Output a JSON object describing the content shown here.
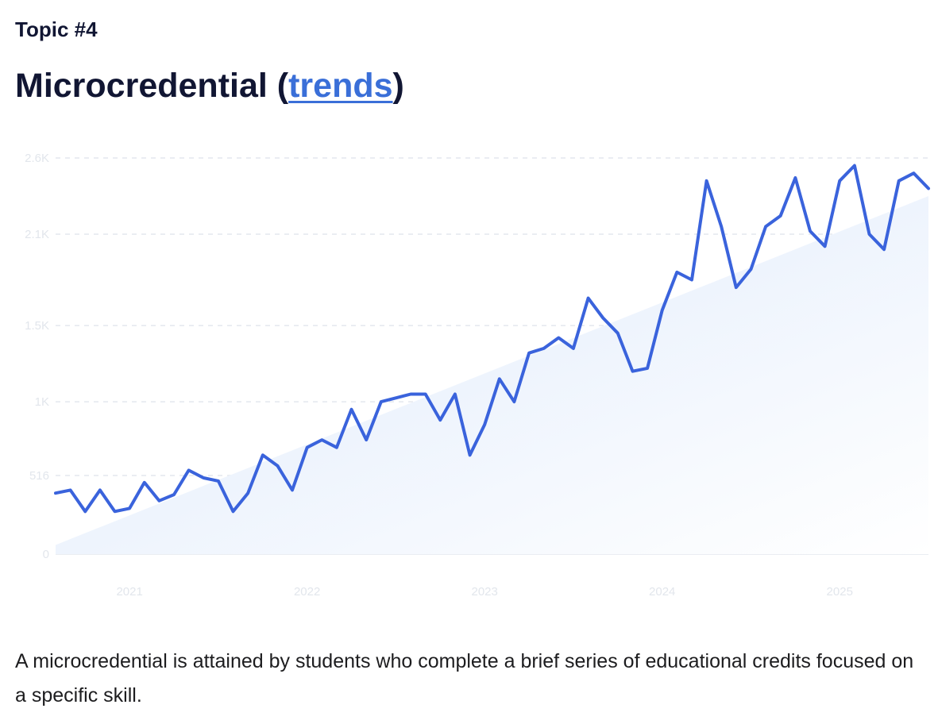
{
  "header": {
    "topic_label": "Topic #4",
    "title_main": "Microcredential",
    "title_paren_open": " (",
    "title_link": "trends",
    "title_paren_close": ")"
  },
  "description": "A microcredential is attained by students who complete a brief series of educational credits focused on a specific skill.",
  "colors": {
    "line": "#3a63dc",
    "trend_fill": "#e6f0fd",
    "grid": "#e4e7ee",
    "tick_text": "#e2e6ec",
    "title": "#111633",
    "link": "#3a6fd8"
  },
  "chart_data": {
    "type": "line",
    "y_ticks": [
      {
        "value": 0,
        "label": "0"
      },
      {
        "value": 516,
        "label": "516"
      },
      {
        "value": 1000,
        "label": "1K"
      },
      {
        "value": 1500,
        "label": "1.5K"
      },
      {
        "value": 2100,
        "label": "2.1K"
      },
      {
        "value": 2600,
        "label": "2.6K"
      }
    ],
    "x_ticks": [
      {
        "value": "2021-01",
        "label": "2021"
      },
      {
        "value": "2022-01",
        "label": "2022"
      },
      {
        "value": "2023-01",
        "label": "2023"
      },
      {
        "value": "2024-01",
        "label": "2024"
      },
      {
        "value": "2025-01",
        "label": "2025"
      }
    ],
    "ylim": [
      0,
      2600
    ],
    "xlim": [
      "2020-08",
      "2025-07"
    ],
    "grid": "horizontal-dashed",
    "trend_area": {
      "start_value": 60,
      "end_value": 2350
    },
    "series": [
      {
        "x": [
          "2020-08",
          "2020-09",
          "2020-10",
          "2020-11",
          "2020-12",
          "2021-01",
          "2021-02",
          "2021-03",
          "2021-04",
          "2021-05",
          "2021-06",
          "2021-07",
          "2021-08",
          "2021-09",
          "2021-10",
          "2021-11",
          "2021-12",
          "2022-01",
          "2022-02",
          "2022-03",
          "2022-04",
          "2022-05",
          "2022-06",
          "2022-07",
          "2022-08",
          "2022-09",
          "2022-10",
          "2022-11",
          "2022-12",
          "2023-01",
          "2023-02",
          "2023-03",
          "2023-04",
          "2023-05",
          "2023-06",
          "2023-07",
          "2023-08",
          "2023-09",
          "2023-10",
          "2023-11",
          "2023-12",
          "2024-01",
          "2024-02",
          "2024-03",
          "2024-04",
          "2024-05",
          "2024-06",
          "2024-07",
          "2024-08",
          "2024-09",
          "2024-10",
          "2024-11",
          "2024-12",
          "2025-01",
          "2025-02",
          "2025-03",
          "2025-04",
          "2025-05",
          "2025-06",
          "2025-07"
        ],
        "values": [
          400,
          420,
          280,
          420,
          280,
          300,
          470,
          350,
          390,
          550,
          500,
          480,
          280,
          400,
          650,
          580,
          420,
          700,
          750,
          700,
          950,
          750,
          1000,
          1025,
          1050,
          1050,
          880,
          1050,
          650,
          850,
          1150,
          1000,
          1320,
          1350,
          1420,
          1350,
          1680,
          1550,
          1450,
          1200,
          1220,
          1600,
          1850,
          1800,
          2450,
          2150,
          1750,
          1870,
          2150,
          2220,
          2470,
          2120,
          2020,
          2450,
          2550,
          2100,
          2000,
          2450,
          2500,
          2400
        ]
      }
    ]
  }
}
